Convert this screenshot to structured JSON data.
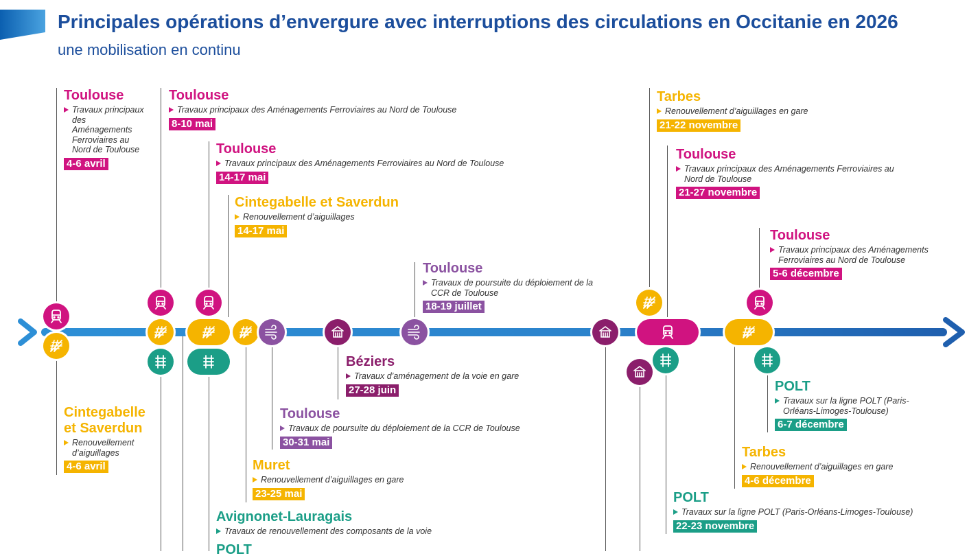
{
  "header": {
    "title": "Principales opérations d’envergure avec interruptions des circulations en Occitanie en 2026",
    "subtitle": "une mobilisation en continu"
  },
  "colors": {
    "magenta": "#d01380",
    "yellow": "#f5b400",
    "teal": "#1b9e87",
    "purple": "#8b52a1",
    "plum": "#8b1e6b",
    "blue": "#1c4e9c"
  },
  "icons": [
    "train-icon",
    "switch-icon",
    "track-icon",
    "signal-icon",
    "station-icon"
  ],
  "events": [
    {
      "city": "Toulouse",
      "desc": "Travaux principaux des Aménagements Ferroviaires au Nord de Toulouse",
      "date": "4-6 avril"
    },
    {
      "city": "Toulouse",
      "desc": "Travaux principaux des Aménagements Ferroviaires au Nord de Toulouse",
      "date": "8-10 mai"
    },
    {
      "city": "Toulouse",
      "desc": "Travaux principaux des Aménagements Ferroviaires au Nord de Toulouse",
      "date": "14-17 mai"
    },
    {
      "city": "Cintegabelle et Saverdun",
      "desc": "Renouvellement d’aiguillages",
      "date": "14-17 mai"
    },
    {
      "city": "Toulouse",
      "desc": "Travaux de poursuite du déploiement de la CCR de Toulouse",
      "date": "18-19 juillet"
    },
    {
      "city": "Tarbes",
      "desc": "Renouvellement d’aiguillages en gare",
      "date": "21-22 novembre"
    },
    {
      "city": "Toulouse",
      "desc": "Travaux principaux des Aménagements Ferroviaires au Nord de Toulouse",
      "date": "21-27 novembre"
    },
    {
      "city": "Toulouse",
      "desc": "Travaux principaux des Aménagements Ferroviaires au Nord de Toulouse",
      "date": "5-6 décembre"
    },
    {
      "city": "Cintegabelle et Saverdun",
      "desc": "Renouvellement d’aiguillages",
      "date": "4-6 avril"
    },
    {
      "city": "Béziers",
      "desc": "Travaux d’aménagement de la voie en gare",
      "date": "27-28 juin"
    },
    {
      "city": "Toulouse",
      "desc": "Travaux de poursuite du déploiement de la CCR de Toulouse",
      "date": "30-31 mai"
    },
    {
      "city": "Muret",
      "desc": "Renouvellement d’aiguillages en gare",
      "date": "23-25 mai"
    },
    {
      "city": "Avignonet-Lauragais",
      "desc": "Travaux de renouvellement des composants de la voie",
      "date": ""
    },
    {
      "city": "POLT",
      "desc": "",
      "date": ""
    },
    {
      "city": "POLT",
      "desc": "Travaux sur la ligne POLT (Paris-Orléans-Limoges-Toulouse)",
      "date": "6-7 décembre"
    },
    {
      "city": "Tarbes",
      "desc": "Renouvellement d’aiguillages en gare",
      "date": "4-6 décembre"
    },
    {
      "city": "POLT",
      "desc": "Travaux sur la ligne POLT (Paris-Orléans-Limoges-Toulouse)",
      "date": "22-23 novembre"
    }
  ]
}
